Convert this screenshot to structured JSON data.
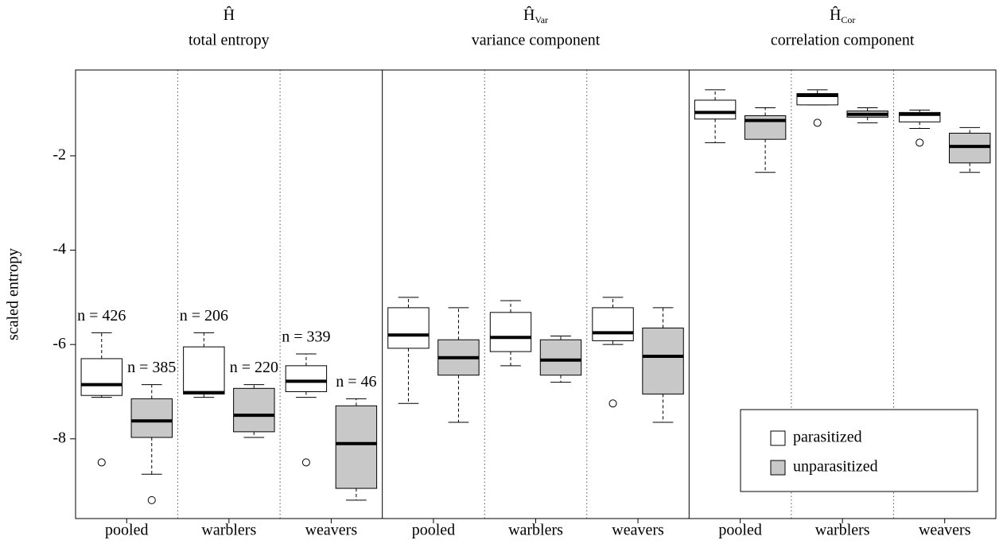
{
  "chart_data": {
    "type": "box",
    "ylabel": "scaled entropy",
    "ylim": [
      -9.69,
      -0.18
    ],
    "yticks": [
      -8,
      -6,
      -4,
      -2
    ],
    "legend": "bottom-right",
    "series": [
      {
        "name": "parasitized",
        "color": "#ffffff"
      },
      {
        "name": "unparasitized",
        "color": "#c8c8c8"
      }
    ],
    "panels": [
      {
        "title": "Ĥ",
        "subtitle": "total entropy",
        "categories": [
          "pooled",
          "warblers",
          "weavers"
        ],
        "series": [
          {
            "labels": [
              "n = 426",
              "n = 206",
              "n = 339"
            ],
            "boxes": [
              {
                "whislo": -7.12,
                "q1": -7.08,
                "med": -6.85,
                "q3": -6.3,
                "whishi": -5.75,
                "fliers": [
                  -8.5
                ]
              },
              {
                "whislo": -7.12,
                "q1": -7.05,
                "med": -7.02,
                "q3": -6.05,
                "whishi": -5.75
              },
              {
                "whislo": -7.12,
                "q1": -7.0,
                "med": -6.78,
                "q3": -6.45,
                "whishi": -6.2,
                "fliers": [
                  -8.5
                ]
              }
            ]
          },
          {
            "labels": [
              "n = 385",
              "n = 220",
              "n = 46"
            ],
            "boxes": [
              {
                "whislo": -8.75,
                "q1": -7.97,
                "med": -7.62,
                "q3": -7.15,
                "whishi": -6.85,
                "fliers": [
                  -9.3
                ]
              },
              {
                "whislo": -7.97,
                "q1": -7.85,
                "med": -7.5,
                "q3": -6.93,
                "whishi": -6.85
              },
              {
                "whislo": -9.3,
                "q1": -9.05,
                "med": -8.1,
                "q3": -7.3,
                "whishi": -7.15
              }
            ]
          }
        ]
      },
      {
        "title": "Ĥ",
        "title_subscript": "Var",
        "subtitle": "variance component",
        "categories": [
          "pooled",
          "warblers",
          "weavers"
        ],
        "series": [
          {
            "boxes": [
              {
                "whislo": -7.25,
                "q1": -6.08,
                "med": -5.8,
                "q3": -5.22,
                "whishi": -5.0
              },
              {
                "whislo": -6.45,
                "q1": -6.15,
                "med": -5.85,
                "q3": -5.32,
                "whishi": -5.07
              },
              {
                "whislo": -6.0,
                "q1": -5.92,
                "med": -5.75,
                "q3": -5.22,
                "whishi": -5.0,
                "fliers": [
                  -7.25
                ]
              }
            ]
          },
          {
            "boxes": [
              {
                "whislo": -7.65,
                "q1": -6.65,
                "med": -6.28,
                "q3": -5.9,
                "whishi": -5.22
              },
              {
                "whislo": -6.8,
                "q1": -6.65,
                "med": -6.33,
                "q3": -5.9,
                "whishi": -5.82
              },
              {
                "whislo": -7.65,
                "q1": -7.05,
                "med": -6.25,
                "q3": -5.65,
                "whishi": -5.22
              }
            ]
          }
        ]
      },
      {
        "title": "Ĥ",
        "title_subscript": "Cor",
        "subtitle": "correlation component",
        "categories": [
          "pooled",
          "warblers",
          "weavers"
        ],
        "series": [
          {
            "boxes": [
              {
                "whislo": -1.72,
                "q1": -1.22,
                "med": -1.08,
                "q3": -0.82,
                "whishi": -0.6
              },
              {
                "whislo": -0.92,
                "q1": -0.92,
                "med": -0.72,
                "q3": -0.68,
                "whishi": -0.6,
                "fliers": [
                  -1.3
                ]
              },
              {
                "whislo": -1.42,
                "q1": -1.28,
                "med": -1.12,
                "q3": -1.08,
                "whishi": -1.03,
                "fliers": [
                  -1.72
                ]
              }
            ]
          },
          {
            "boxes": [
              {
                "whislo": -2.35,
                "q1": -1.65,
                "med": -1.25,
                "q3": -1.15,
                "whishi": -0.98
              },
              {
                "whislo": -1.3,
                "q1": -1.18,
                "med": -1.12,
                "q3": -1.05,
                "whishi": -0.98
              },
              {
                "whislo": -2.35,
                "q1": -2.15,
                "med": -1.8,
                "q3": -1.52,
                "whishi": -1.4
              }
            ]
          }
        ]
      }
    ]
  }
}
